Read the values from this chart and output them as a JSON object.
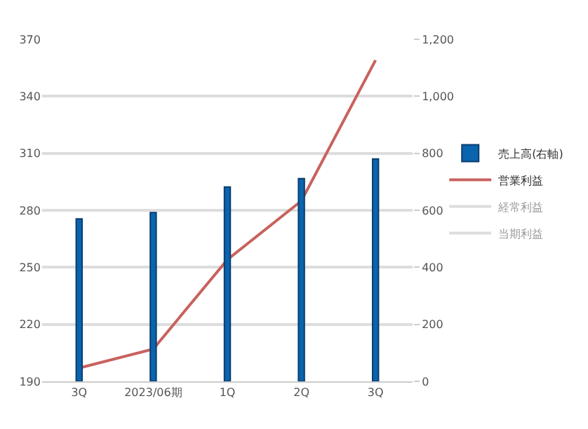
{
  "chart_data": {
    "type": "bar",
    "categories": [
      "3Q",
      "2023/06期",
      "1Q",
      "2Q",
      "3Q"
    ],
    "series": [
      {
        "name": "売上高(右軸)",
        "axis": "y2",
        "color": "#0a64ae",
        "values": [
          570,
          592,
          682,
          711,
          780
        ]
      },
      {
        "name": "営業利益",
        "type": "line",
        "color": "#c8625e",
        "values": [
          197,
          207,
          254,
          285,
          359
        ]
      },
      {
        "name": "経常利益",
        "type": "line",
        "color": "#bbbbbb",
        "values": [
          null,
          null,
          null,
          null,
          null
        ]
      },
      {
        "name": "当期利益",
        "type": "line",
        "color": "#bbbbbb",
        "values": [
          null,
          null,
          null,
          null,
          null
        ]
      }
    ],
    "ylim": [
      190,
      370
    ],
    "yticks": [
      190,
      220,
      250,
      280,
      310,
      340,
      370
    ],
    "y2lim": [
      0,
      1200
    ],
    "y2ticks": [
      0,
      200,
      400,
      600,
      800,
      {
        "value": 1000,
        "label": "1,000"
      },
      {
        "value": 1200,
        "label": "1,200"
      }
    ],
    "grid": "y",
    "legend": "right"
  }
}
